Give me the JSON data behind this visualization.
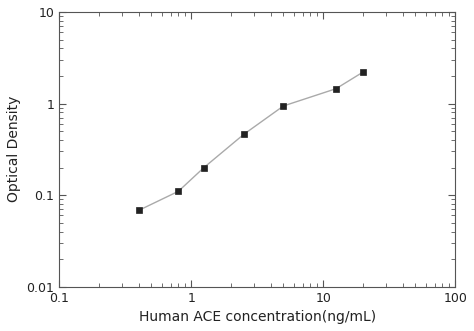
{
  "x_data": [
    0.4,
    0.8,
    1.25,
    2.5,
    5.0,
    12.5,
    20.0
  ],
  "y_data": [
    0.068,
    0.11,
    0.2,
    0.46,
    0.94,
    1.45,
    2.2
  ],
  "xlabel": "Human ACE concentration(ng/mL)",
  "ylabel": "Optical Density",
  "xlim": [
    0.1,
    100
  ],
  "ylim": [
    0.01,
    10
  ],
  "line_color": "#aaaaaa",
  "marker_color": "#222222",
  "marker": "s",
  "marker_size": 5,
  "line_width": 1.0,
  "background_color": "#ffffff",
  "xlabel_fontsize": 10,
  "ylabel_fontsize": 10,
  "tick_fontsize": 9,
  "spine_color": "#555555"
}
